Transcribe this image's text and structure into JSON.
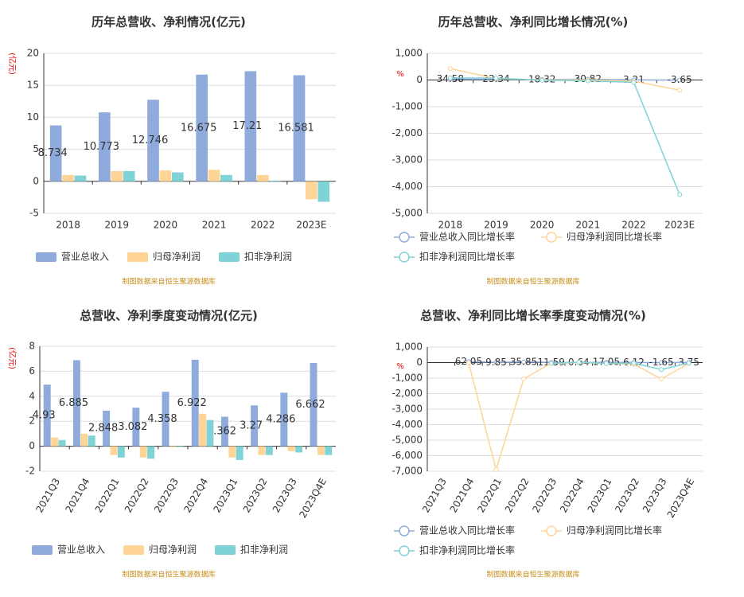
{
  "chart_data": [
    {
      "type": "bar",
      "title": "历年总营收、净利情况(亿元)",
      "ylabel": "(亿元)",
      "source": "制图数据来自恒生聚源数据库",
      "categories": [
        "2018",
        "2019",
        "2020",
        "2021",
        "2022",
        "2023E"
      ],
      "series": [
        {
          "name": "营业总收入",
          "color": "#8eabdb",
          "labels": true,
          "values": [
            8.734,
            10.773,
            12.746,
            16.675,
            17.21,
            16.581
          ]
        },
        {
          "name": "归母净利润",
          "color": "#fed597",
          "labels": false,
          "values": [
            1.0,
            1.6,
            1.7,
            1.8,
            1.0,
            -2.8
          ]
        },
        {
          "name": "扣非净利润",
          "color": "#7fd3d6",
          "labels": false,
          "values": [
            0.9,
            1.6,
            1.4,
            1.0,
            0.1,
            -3.2
          ]
        }
      ],
      "ylim": [
        -5,
        20
      ],
      "yticks": [
        -5,
        0,
        5,
        10,
        15,
        20
      ],
      "grid": true
    },
    {
      "type": "line",
      "title": "历年总营收、净利同比增长情况(%)",
      "ylabel": "%",
      "source": "制图数据来自恒生聚源数据库",
      "categories": [
        "2018",
        "2019",
        "2020",
        "2021",
        "2022",
        "2023E"
      ],
      "series": [
        {
          "name": "营业总收入同比增长率",
          "color": "#8eabdb",
          "labels": true,
          "values": [
            34.58,
            23.34,
            18.32,
            30.82,
            3.21,
            -3.65
          ]
        },
        {
          "name": "归母净利润同比增长率",
          "color": "#fed597",
          "labels": false,
          "values": [
            430,
            50,
            5,
            5,
            -45,
            -380
          ]
        },
        {
          "name": "扣非净利润同比增长率",
          "color": "#7fd3d6",
          "labels": false,
          "values": [
            80,
            70,
            -10,
            -30,
            -90,
            -4300
          ]
        }
      ],
      "ylim": [
        -5000,
        1000
      ],
      "yticks": [
        {
          "value": 1000,
          "label": "1,000"
        },
        0,
        {
          "value": -1000,
          "label": "-1,000"
        },
        {
          "value": -2000,
          "label": "-2,000"
        },
        {
          "value": -3000,
          "label": "-3,000"
        },
        {
          "value": -4000,
          "label": "-4,000"
        },
        {
          "value": -5000,
          "label": "-5,000"
        }
      ],
      "grid": true
    },
    {
      "type": "bar",
      "title": "总营收、净利季度变动情况(亿元)",
      "ylabel": "(亿元)",
      "source": "制图数据来自恒生聚源数据库",
      "categories": [
        "2021Q3",
        "2021Q4",
        "2022Q1",
        "2022Q2",
        "2022Q3",
        "2022Q4",
        "2023Q1",
        "2023Q2",
        "2023Q3",
        "2023Q4E"
      ],
      "series": [
        {
          "name": "营业总收入",
          "color": "#8eabdb",
          "labels": true,
          "values": [
            4.93,
            6.885,
            2.848,
            3.082,
            4.358,
            6.922,
            2.362,
            3.27,
            4.286,
            6.662
          ]
        },
        {
          "name": "归母净利润",
          "color": "#fed597",
          "labels": false,
          "values": [
            0.7,
            1.0,
            -0.7,
            -0.9,
            -0.05,
            2.6,
            -0.9,
            -0.7,
            -0.4,
            -0.7
          ]
        },
        {
          "name": "扣非净利润",
          "color": "#7fd3d6",
          "labels": false,
          "values": [
            0.5,
            0.85,
            -0.9,
            -1.0,
            -0.05,
            2.1,
            -1.1,
            -0.7,
            -0.5,
            -0.7
          ]
        }
      ],
      "ylim": [
        -2,
        8
      ],
      "yticks": [
        -2,
        0,
        2,
        4,
        6,
        8
      ],
      "grid": true
    },
    {
      "type": "line",
      "title": "总营收、净利同比增长率季度变动情况(%)",
      "ylabel": "%",
      "source": "制图数据来自恒生聚源数据库",
      "categories": [
        "2021Q3",
        "2021Q4",
        "2022Q1",
        "2022Q2",
        "2022Q3",
        "2022Q4",
        "2023Q1",
        "2023Q2",
        "2023Q3",
        "2023Q4E"
      ],
      "series": [
        {
          "name": "营业总收入同比增长率",
          "color": "#8eabdb",
          "labels": true,
          "values": [
            null,
            62.05,
            9.85,
            35.85,
            11.59,
            0.64,
            17.05,
            6.12,
            -1.65,
            3.75
          ]
        },
        {
          "name": "归母净利润同比增长率",
          "color": "#fed597",
          "labels": false,
          "values": [
            null,
            0,
            -6900,
            -1050,
            -50,
            0,
            -50,
            -100,
            -1050,
            -50
          ]
        },
        {
          "name": "扣非净利润同比增长率",
          "color": "#7fd3d6",
          "labels": false,
          "values": [
            null,
            null,
            null,
            null,
            -50,
            20,
            -60,
            -30,
            -450,
            -30
          ]
        }
      ],
      "ylim": [
        -7000,
        1000
      ],
      "yticks": [
        {
          "value": 1000,
          "label": "1,000"
        },
        0,
        {
          "value": -1000,
          "label": "-1,000"
        },
        {
          "value": -2000,
          "label": "-2,000"
        },
        {
          "value": -3000,
          "label": "-3,000"
        },
        {
          "value": -4000,
          "label": "-4,000"
        },
        {
          "value": -5000,
          "label": "-5,000"
        },
        {
          "value": -6000,
          "label": "-6,000"
        },
        {
          "value": -7000,
          "label": "-7,000"
        }
      ],
      "grid": true
    }
  ]
}
